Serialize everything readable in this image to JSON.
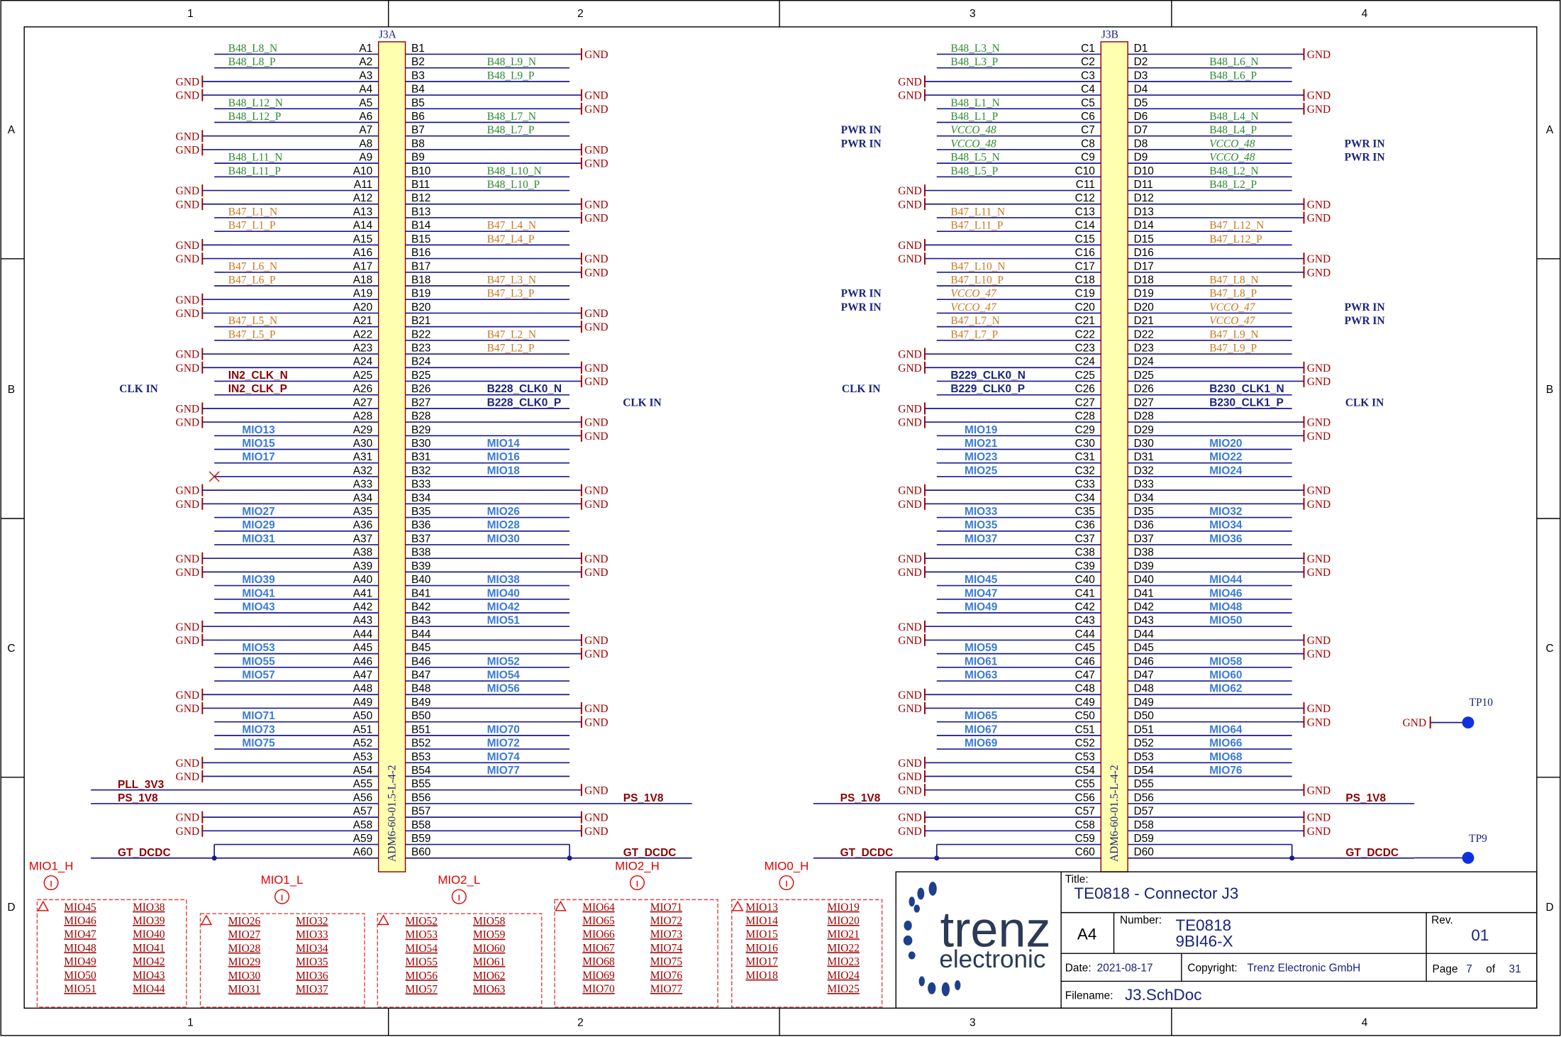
{
  "border": {
    "columns": [
      "1",
      "2",
      "3",
      "4"
    ],
    "rows": [
      "A",
      "B",
      "C",
      "D"
    ]
  },
  "connectors": [
    {
      "ref": "J3A",
      "part": "ADM6-60-01.5-L-4-2",
      "left": [
        {
          "pin": "A1",
          "net": "B48_L8_N"
        },
        {
          "pin": "A2",
          "net": "B48_L8_P"
        },
        {
          "pin": "A3",
          "net": "GND"
        },
        {
          "pin": "A4",
          "net": "GND"
        },
        {
          "pin": "A5",
          "net": "B48_L12_N"
        },
        {
          "pin": "A6",
          "net": "B48_L12_P"
        },
        {
          "pin": "A7",
          "net": "GND"
        },
        {
          "pin": "A8",
          "net": "GND"
        },
        {
          "pin": "A9",
          "net": "B48_L11_N"
        },
        {
          "pin": "A10",
          "net": "B48_L11_P"
        },
        {
          "pin": "A11",
          "net": "GND"
        },
        {
          "pin": "A12",
          "net": "GND"
        },
        {
          "pin": "A13",
          "net": "B47_L1_N"
        },
        {
          "pin": "A14",
          "net": "B47_L1_P"
        },
        {
          "pin": "A15",
          "net": "GND"
        },
        {
          "pin": "A16",
          "net": "GND"
        },
        {
          "pin": "A17",
          "net": "B47_L6_N"
        },
        {
          "pin": "A18",
          "net": "B47_L6_P"
        },
        {
          "pin": "A19",
          "net": "GND"
        },
        {
          "pin": "A20",
          "net": "GND"
        },
        {
          "pin": "A21",
          "net": "B47_L5_N"
        },
        {
          "pin": "A22",
          "net": "B47_L5_P"
        },
        {
          "pin": "A23",
          "net": "GND"
        },
        {
          "pin": "A24",
          "net": "GND"
        },
        {
          "pin": "A25",
          "net": "IN2_CLK_N"
        },
        {
          "pin": "A26",
          "net": "IN2_CLK_P",
          "port": "CLK IN"
        },
        {
          "pin": "A27",
          "net": "GND"
        },
        {
          "pin": "A28",
          "net": "GND"
        },
        {
          "pin": "A29",
          "net": "MIO13"
        },
        {
          "pin": "A30",
          "net": "MIO15"
        },
        {
          "pin": "A31",
          "net": "MIO17"
        },
        {
          "pin": "A32",
          "nc": true
        },
        {
          "pin": "A33",
          "net": "GND"
        },
        {
          "pin": "A34",
          "net": "GND"
        },
        {
          "pin": "A35",
          "net": "MIO27"
        },
        {
          "pin": "A36",
          "net": "MIO29"
        },
        {
          "pin": "A37",
          "net": "MIO31"
        },
        {
          "pin": "A38",
          "net": "GND"
        },
        {
          "pin": "A39",
          "net": "GND"
        },
        {
          "pin": "A40",
          "net": "MIO39"
        },
        {
          "pin": "A41",
          "net": "MIO41"
        },
        {
          "pin": "A42",
          "net": "MIO43"
        },
        {
          "pin": "A43",
          "net": "GND"
        },
        {
          "pin": "A44",
          "net": "GND"
        },
        {
          "pin": "A45",
          "net": "MIO53"
        },
        {
          "pin": "A46",
          "net": "MIO55"
        },
        {
          "pin": "A47",
          "net": "MIO57"
        },
        {
          "pin": "A48",
          "net": "GND"
        },
        {
          "pin": "A49",
          "net": "GND"
        },
        {
          "pin": "A50",
          "net": "MIO71"
        },
        {
          "pin": "A51",
          "net": "MIO73"
        },
        {
          "pin": "A52",
          "net": "MIO75"
        },
        {
          "pin": "A53",
          "net": "GND"
        },
        {
          "pin": "A54",
          "net": "GND"
        },
        {
          "pin": "A55",
          "net": "PLL_3V3"
        },
        {
          "pin": "A56",
          "net": "PS_1V8"
        },
        {
          "pin": "A57",
          "net": "GND"
        },
        {
          "pin": "A58",
          "net": "GND"
        },
        {
          "pin": "A59"
        },
        {
          "pin": "A60",
          "net": "GT_DCDC"
        }
      ],
      "right": [
        {
          "pin": "B1",
          "net": "GND"
        },
        {
          "pin": "B2",
          "net": "B48_L9_N"
        },
        {
          "pin": "B3",
          "net": "B48_L9_P"
        },
        {
          "pin": "B4",
          "net": "GND"
        },
        {
          "pin": "B5",
          "net": "GND"
        },
        {
          "pin": "B6",
          "net": "B48_L7_N"
        },
        {
          "pin": "B7",
          "net": "B48_L7_P"
        },
        {
          "pin": "B8",
          "net": "GND"
        },
        {
          "pin": "B9",
          "net": "GND"
        },
        {
          "pin": "B10",
          "net": "B48_L10_N"
        },
        {
          "pin": "B11",
          "net": "B48_L10_P"
        },
        {
          "pin": "B12",
          "net": "GND"
        },
        {
          "pin": "B13",
          "net": "GND"
        },
        {
          "pin": "B14",
          "net": "B47_L4_N"
        },
        {
          "pin": "B15",
          "net": "B47_L4_P"
        },
        {
          "pin": "B16",
          "net": "GND"
        },
        {
          "pin": "B17",
          "net": "GND"
        },
        {
          "pin": "B18",
          "net": "B47_L3_N"
        },
        {
          "pin": "B19",
          "net": "B47_L3_P"
        },
        {
          "pin": "B20",
          "net": "GND"
        },
        {
          "pin": "B21",
          "net": "GND"
        },
        {
          "pin": "B22",
          "net": "B47_L2_N"
        },
        {
          "pin": "B23",
          "net": "B47_L2_P"
        },
        {
          "pin": "B24",
          "net": "GND"
        },
        {
          "pin": "B25",
          "net": "GND"
        },
        {
          "pin": "B26",
          "net": "B228_CLK0_N"
        },
        {
          "pin": "B27",
          "net": "B228_CLK0_P",
          "port": "CLK IN"
        },
        {
          "pin": "B28",
          "net": "GND"
        },
        {
          "pin": "B29",
          "net": "GND"
        },
        {
          "pin": "B30",
          "net": "MIO14"
        },
        {
          "pin": "B31",
          "net": "MIO16"
        },
        {
          "pin": "B32",
          "net": "MIO18"
        },
        {
          "pin": "B33",
          "net": "GND"
        },
        {
          "pin": "B34",
          "net": "GND"
        },
        {
          "pin": "B35",
          "net": "MIO26"
        },
        {
          "pin": "B36",
          "net": "MIO28"
        },
        {
          "pin": "B37",
          "net": "MIO30"
        },
        {
          "pin": "B38",
          "net": "GND"
        },
        {
          "pin": "B39",
          "net": "GND"
        },
        {
          "pin": "B40",
          "net": "MIO38"
        },
        {
          "pin": "B41",
          "net": "MIO40"
        },
        {
          "pin": "B42",
          "net": "MIO42"
        },
        {
          "pin": "B43",
          "net": "MIO51"
        },
        {
          "pin": "B44",
          "net": "GND"
        },
        {
          "pin": "B45",
          "net": "GND"
        },
        {
          "pin": "B46",
          "net": "MIO52"
        },
        {
          "pin": "B47",
          "net": "MIO54"
        },
        {
          "pin": "B48",
          "net": "MIO56"
        },
        {
          "pin": "B49",
          "net": "GND"
        },
        {
          "pin": "B50",
          "net": "GND"
        },
        {
          "pin": "B51",
          "net": "MIO70"
        },
        {
          "pin": "B52",
          "net": "MIO72"
        },
        {
          "pin": "B53",
          "net": "MIO74"
        },
        {
          "pin": "B54",
          "net": "MIO77"
        },
        {
          "pin": "B55",
          "net": "GND"
        },
        {
          "pin": "B56",
          "net": "PS_1V8"
        },
        {
          "pin": "B57",
          "net": "GND"
        },
        {
          "pin": "B58",
          "net": "GND"
        },
        {
          "pin": "B59"
        },
        {
          "pin": "B60",
          "net": "GT_DCDC"
        }
      ]
    },
    {
      "ref": "J3B",
      "part": "ADM6-60-01.5-L-4-2",
      "left": [
        {
          "pin": "C1",
          "net": "B48_L3_N"
        },
        {
          "pin": "C2",
          "net": "B48_L3_P"
        },
        {
          "pin": "C3",
          "net": "GND"
        },
        {
          "pin": "C4",
          "net": "GND"
        },
        {
          "pin": "C5",
          "net": "B48_L1_N"
        },
        {
          "pin": "C6",
          "net": "B48_L1_P"
        },
        {
          "pin": "C7",
          "net": "VCCO_48",
          "port": "PWR IN"
        },
        {
          "pin": "C8",
          "net": "VCCO_48",
          "port": "PWR IN"
        },
        {
          "pin": "C9",
          "net": "B48_L5_N"
        },
        {
          "pin": "C10",
          "net": "B48_L5_P"
        },
        {
          "pin": "C11",
          "net": "GND"
        },
        {
          "pin": "C12",
          "net": "GND"
        },
        {
          "pin": "C13",
          "net": "B47_L11_N"
        },
        {
          "pin": "C14",
          "net": "B47_L11_P"
        },
        {
          "pin": "C15",
          "net": "GND"
        },
        {
          "pin": "C16",
          "net": "GND"
        },
        {
          "pin": "C17",
          "net": "B47_L10_N"
        },
        {
          "pin": "C18",
          "net": "B47_L10_P"
        },
        {
          "pin": "C19",
          "net": "VCCO_47",
          "port": "PWR IN"
        },
        {
          "pin": "C20",
          "net": "VCCO_47",
          "port": "PWR IN"
        },
        {
          "pin": "C21",
          "net": "B47_L7_N"
        },
        {
          "pin": "C22",
          "net": "B47_L7_P"
        },
        {
          "pin": "C23",
          "net": "GND"
        },
        {
          "pin": "C24",
          "net": "GND"
        },
        {
          "pin": "C25",
          "net": "B229_CLK0_N"
        },
        {
          "pin": "C26",
          "net": "B229_CLK0_P",
          "port": "CLK IN"
        },
        {
          "pin": "C27",
          "net": "GND"
        },
        {
          "pin": "C28",
          "net": "GND"
        },
        {
          "pin": "C29",
          "net": "MIO19"
        },
        {
          "pin": "C30",
          "net": "MIO21"
        },
        {
          "pin": "C31",
          "net": "MIO23"
        },
        {
          "pin": "C32",
          "net": "MIO25"
        },
        {
          "pin": "C33",
          "net": "GND"
        },
        {
          "pin": "C34",
          "net": "GND"
        },
        {
          "pin": "C35",
          "net": "MIO33"
        },
        {
          "pin": "C36",
          "net": "MIO35"
        },
        {
          "pin": "C37",
          "net": "MIO37"
        },
        {
          "pin": "C38",
          "net": "GND"
        },
        {
          "pin": "C39",
          "net": "GND"
        },
        {
          "pin": "C40",
          "net": "MIO45"
        },
        {
          "pin": "C41",
          "net": "MIO47"
        },
        {
          "pin": "C42",
          "net": "MIO49"
        },
        {
          "pin": "C43",
          "net": "GND"
        },
        {
          "pin": "C44",
          "net": "GND"
        },
        {
          "pin": "C45",
          "net": "MIO59"
        },
        {
          "pin": "C46",
          "net": "MIO61"
        },
        {
          "pin": "C47",
          "net": "MIO63"
        },
        {
          "pin": "C48",
          "net": "GND"
        },
        {
          "pin": "C49",
          "net": "GND"
        },
        {
          "pin": "C50",
          "net": "MIO65"
        },
        {
          "pin": "C51",
          "net": "MIO67"
        },
        {
          "pin": "C52",
          "net": "MIO69"
        },
        {
          "pin": "C53",
          "net": "GND"
        },
        {
          "pin": "C54",
          "net": "GND"
        },
        {
          "pin": "C55",
          "net": "GND"
        },
        {
          "pin": "C56",
          "net": "PS_1V8"
        },
        {
          "pin": "C57",
          "net": "GND"
        },
        {
          "pin": "C58",
          "net": "GND"
        },
        {
          "pin": "C59"
        },
        {
          "pin": "C60",
          "net": "GT_DCDC"
        }
      ],
      "right": [
        {
          "pin": "D1",
          "net": "GND"
        },
        {
          "pin": "D2",
          "net": "B48_L6_N"
        },
        {
          "pin": "D3",
          "net": "B48_L6_P"
        },
        {
          "pin": "D4",
          "net": "GND"
        },
        {
          "pin": "D5",
          "net": "GND"
        },
        {
          "pin": "D6",
          "net": "B48_L4_N"
        },
        {
          "pin": "D7",
          "net": "B48_L4_P"
        },
        {
          "pin": "D8",
          "net": "VCCO_48",
          "port": "PWR IN"
        },
        {
          "pin": "D9",
          "net": "VCCO_48",
          "port": "PWR IN"
        },
        {
          "pin": "D10",
          "net": "B48_L2_N"
        },
        {
          "pin": "D11",
          "net": "B48_L2_P"
        },
        {
          "pin": "D12",
          "net": "GND"
        },
        {
          "pin": "D13",
          "net": "GND"
        },
        {
          "pin": "D14",
          "net": "B47_L12_N"
        },
        {
          "pin": "D15",
          "net": "B47_L12_P"
        },
        {
          "pin": "D16",
          "net": "GND"
        },
        {
          "pin": "D17",
          "net": "GND"
        },
        {
          "pin": "D18",
          "net": "B47_L8_N"
        },
        {
          "pin": "D19",
          "net": "B47_L8_P"
        },
        {
          "pin": "D20",
          "net": "VCCO_47",
          "port": "PWR IN"
        },
        {
          "pin": "D21",
          "net": "VCCO_47",
          "port": "PWR IN"
        },
        {
          "pin": "D22",
          "net": "B47_L9_N"
        },
        {
          "pin": "D23",
          "net": "B47_L9_P"
        },
        {
          "pin": "D24",
          "net": "GND"
        },
        {
          "pin": "D25",
          "net": "GND"
        },
        {
          "pin": "D26",
          "net": "B230_CLK1_N"
        },
        {
          "pin": "D27",
          "net": "B230_CLK1_P",
          "port": "CLK IN"
        },
        {
          "pin": "D28",
          "net": "GND"
        },
        {
          "pin": "D29",
          "net": "GND"
        },
        {
          "pin": "D30",
          "net": "MIO20"
        },
        {
          "pin": "D31",
          "net": "MIO22"
        },
        {
          "pin": "D32",
          "net": "MIO24"
        },
        {
          "pin": "D33",
          "net": "GND"
        },
        {
          "pin": "D34",
          "net": "GND"
        },
        {
          "pin": "D35",
          "net": "MIO32"
        },
        {
          "pin": "D36",
          "net": "MIO34"
        },
        {
          "pin": "D37",
          "net": "MIO36"
        },
        {
          "pin": "D38",
          "net": "GND"
        },
        {
          "pin": "D39",
          "net": "GND"
        },
        {
          "pin": "D40",
          "net": "MIO44"
        },
        {
          "pin": "D41",
          "net": "MIO46"
        },
        {
          "pin": "D42",
          "net": "MIO48"
        },
        {
          "pin": "D43",
          "net": "MIO50"
        },
        {
          "pin": "D44",
          "net": "GND"
        },
        {
          "pin": "D45",
          "net": "GND"
        },
        {
          "pin": "D46",
          "net": "MIO58"
        },
        {
          "pin": "D47",
          "net": "MIO60"
        },
        {
          "pin": "D48",
          "net": "MIO62"
        },
        {
          "pin": "D49",
          "net": "GND"
        },
        {
          "pin": "D50",
          "net": "GND"
        },
        {
          "pin": "D51",
          "net": "MIO64"
        },
        {
          "pin": "D52",
          "net": "MIO66"
        },
        {
          "pin": "D53",
          "net": "MIO68"
        },
        {
          "pin": "D54",
          "net": "MIO76"
        },
        {
          "pin": "D55",
          "net": "GND"
        },
        {
          "pin": "D56",
          "net": "PS_1V8"
        },
        {
          "pin": "D57",
          "net": "GND"
        },
        {
          "pin": "D58",
          "net": "GND"
        },
        {
          "pin": "D59"
        },
        {
          "pin": "D60",
          "net": "GT_DCDC"
        }
      ]
    }
  ],
  "mio_groups": [
    {
      "name": "MIO1_H",
      "columns": [
        [
          "MIO45",
          "MIO46",
          "MIO47",
          "MIO48",
          "MIO49",
          "MIO50",
          "MIO51"
        ],
        [
          "MIO38",
          "MIO39",
          "MIO40",
          "MIO41",
          "MIO42",
          "MIO43",
          "MIO44"
        ]
      ]
    },
    {
      "name": "MIO1_L",
      "columns": [
        [
          "MIO26",
          "MIO27",
          "MIO28",
          "MIO29",
          "MIO30",
          "MIO31"
        ],
        [
          "MIO32",
          "MIO33",
          "MIO34",
          "MIO35",
          "MIO36",
          "MIO37"
        ]
      ]
    },
    {
      "name": "MIO2_L",
      "columns": [
        [
          "MIO52",
          "MIO53",
          "MIO54",
          "MIO55",
          "MIO56",
          "MIO57"
        ],
        [
          "MIO58",
          "MIO59",
          "MIO60",
          "MIO61",
          "MIO62",
          "MIO63"
        ]
      ]
    },
    {
      "name": "MIO2_H",
      "columns": [
        [
          "MIO64",
          "MIO65",
          "MIO66",
          "MIO67",
          "MIO68",
          "MIO69",
          "MIO70"
        ],
        [
          "MIO71",
          "MIO72",
          "MIO73",
          "MIO74",
          "MIO75",
          "MIO76",
          "MIO77"
        ]
      ]
    },
    {
      "name": "MIO0_H",
      "columns": [
        [
          "MIO13",
          "MIO14",
          "MIO15",
          "MIO16",
          "MIO17",
          "MIO18"
        ],
        [
          "MIO19",
          "MIO20",
          "MIO21",
          "MIO22",
          "MIO23",
          "MIO24",
          "MIO25"
        ]
      ]
    }
  ],
  "test_points": [
    {
      "ref": "TP10",
      "net": "GND"
    },
    {
      "ref": "TP9"
    }
  ],
  "logo": {
    "name": "trenz",
    "tagline": "electronic"
  },
  "title_block": {
    "title_label": "Title:",
    "title": "TE0818 - Connector J3",
    "size": "A4",
    "number_label": "Number:",
    "number": [
      "TE0818",
      "9BI46-X"
    ],
    "rev_label": "Rev.",
    "rev": "01",
    "date_label": "Date:",
    "date": "2021-08-17",
    "copyright_label": "Copyright:",
    "copyright": "Trenz Electronic GmbH",
    "page_label": "Page",
    "page": "7",
    "of_label": "of",
    "pages": "31",
    "filename_label": "Filename:",
    "filename": "J3.SchDoc"
  }
}
